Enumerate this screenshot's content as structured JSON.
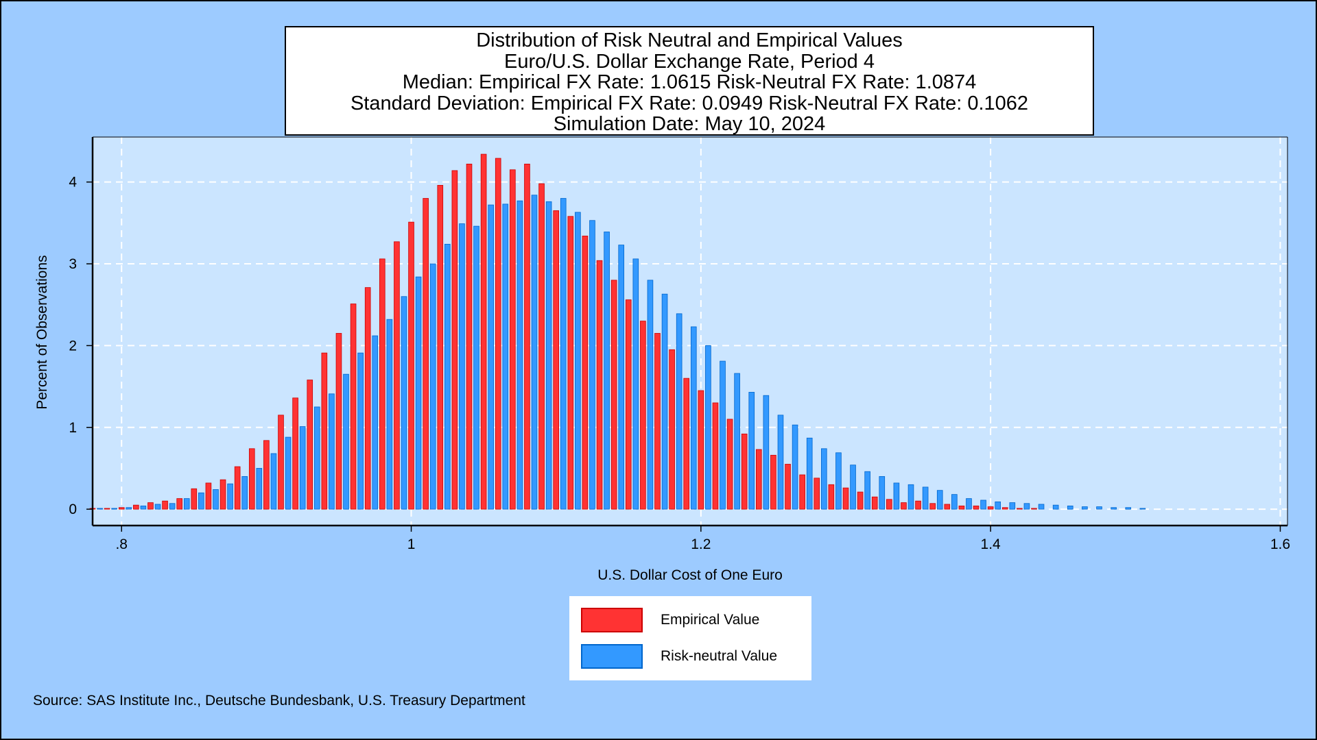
{
  "title_lines": [
    "Distribution of Risk Neutral and Empirical Values",
    "Euro/U.S. Dollar Exchange Rate, Period 4",
    "Median: Empirical FX Rate:  1.0615   Risk-Neutral FX Rate:  1.0874",
    "Standard Deviation: Empirical FX Rate:  0.0949   Risk-Neutral FX Rate:  0.1062",
    "Simulation Date: May 10, 2024"
  ],
  "source": "Source: SAS Institute Inc., Deutsche Bundesbank, U.S. Treasury Department",
  "colors": {
    "background": "#9dcbff",
    "plot_background": "#cbe5ff",
    "empirical": "#ff3333",
    "empirical_edge": "#cc0000",
    "risk_neutral": "#3399ff",
    "risk_neutral_edge": "#0066cc",
    "grid": "#ffffff"
  },
  "chart_data": {
    "type": "bar",
    "xlabel": "U.S. Dollar Cost of One Euro",
    "ylabel": "Percent of Observations",
    "xlim": [
      0.78,
      1.605
    ],
    "ylim": [
      -0.2,
      4.55
    ],
    "xticks": [
      0.8,
      1.0,
      1.2,
      1.4,
      1.6
    ],
    "xtick_labels": [
      ".8",
      "1",
      "1.2",
      "1.4",
      "1.6"
    ],
    "yticks": [
      0,
      1,
      2,
      3,
      4
    ],
    "ytick_labels": [
      "0",
      "1",
      "2",
      "3",
      "4"
    ],
    "grid": true,
    "legend_position": "bottom-center",
    "bin_width": 0.01,
    "x": [
      0.78,
      0.79,
      0.8,
      0.81,
      0.82,
      0.83,
      0.84,
      0.85,
      0.86,
      0.87,
      0.88,
      0.89,
      0.9,
      0.91,
      0.92,
      0.93,
      0.94,
      0.95,
      0.96,
      0.97,
      0.98,
      0.99,
      1.0,
      1.01,
      1.02,
      1.03,
      1.04,
      1.05,
      1.06,
      1.07,
      1.08,
      1.09,
      1.1,
      1.11,
      1.12,
      1.13,
      1.14,
      1.15,
      1.16,
      1.17,
      1.18,
      1.19,
      1.2,
      1.21,
      1.22,
      1.23,
      1.24,
      1.25,
      1.26,
      1.27,
      1.28,
      1.29,
      1.3,
      1.31,
      1.32,
      1.33,
      1.34,
      1.35,
      1.36,
      1.37,
      1.38,
      1.39,
      1.4,
      1.41,
      1.42,
      1.43,
      1.44,
      1.45,
      1.46,
      1.47,
      1.48,
      1.49,
      1.5
    ],
    "series": [
      {
        "name": "Empirical Value",
        "values": [
          0.01,
          0.01,
          0.02,
          0.05,
          0.08,
          0.1,
          0.13,
          0.25,
          0.32,
          0.36,
          0.52,
          0.74,
          0.84,
          1.15,
          1.36,
          1.58,
          1.91,
          2.15,
          2.51,
          2.71,
          3.06,
          3.27,
          3.51,
          3.8,
          3.96,
          4.14,
          4.22,
          4.34,
          4.29,
          4.15,
          4.22,
          3.98,
          3.65,
          3.58,
          3.34,
          3.04,
          2.8,
          2.56,
          2.3,
          2.15,
          1.95,
          1.6,
          1.45,
          1.3,
          1.1,
          0.92,
          0.73,
          0.66,
          0.55,
          0.42,
          0.38,
          0.3,
          0.26,
          0.21,
          0.15,
          0.12,
          0.08,
          0.1,
          0.07,
          0.06,
          0.04,
          0.04,
          0.03,
          0.02,
          0.01,
          0.01,
          0,
          0,
          0,
          0,
          0,
          0,
          0
        ]
      },
      {
        "name": "Risk-neutral Value",
        "values": [
          0.01,
          0.01,
          0.02,
          0.04,
          0.06,
          0.07,
          0.13,
          0.2,
          0.24,
          0.31,
          0.4,
          0.5,
          0.68,
          0.88,
          1.01,
          1.25,
          1.41,
          1.65,
          1.91,
          2.12,
          2.32,
          2.6,
          2.84,
          3.0,
          3.24,
          3.49,
          3.46,
          3.72,
          3.73,
          3.77,
          3.84,
          3.76,
          3.8,
          3.63,
          3.53,
          3.39,
          3.23,
          3.06,
          2.8,
          2.63,
          2.39,
          2.23,
          2.0,
          1.81,
          1.66,
          1.43,
          1.39,
          1.15,
          1.03,
          0.87,
          0.74,
          0.69,
          0.54,
          0.46,
          0.4,
          0.32,
          0.3,
          0.27,
          0.23,
          0.18,
          0.13,
          0.11,
          0.09,
          0.08,
          0.07,
          0.06,
          0.05,
          0.04,
          0.03,
          0.03,
          0.02,
          0.02,
          0.01
        ]
      }
    ]
  }
}
